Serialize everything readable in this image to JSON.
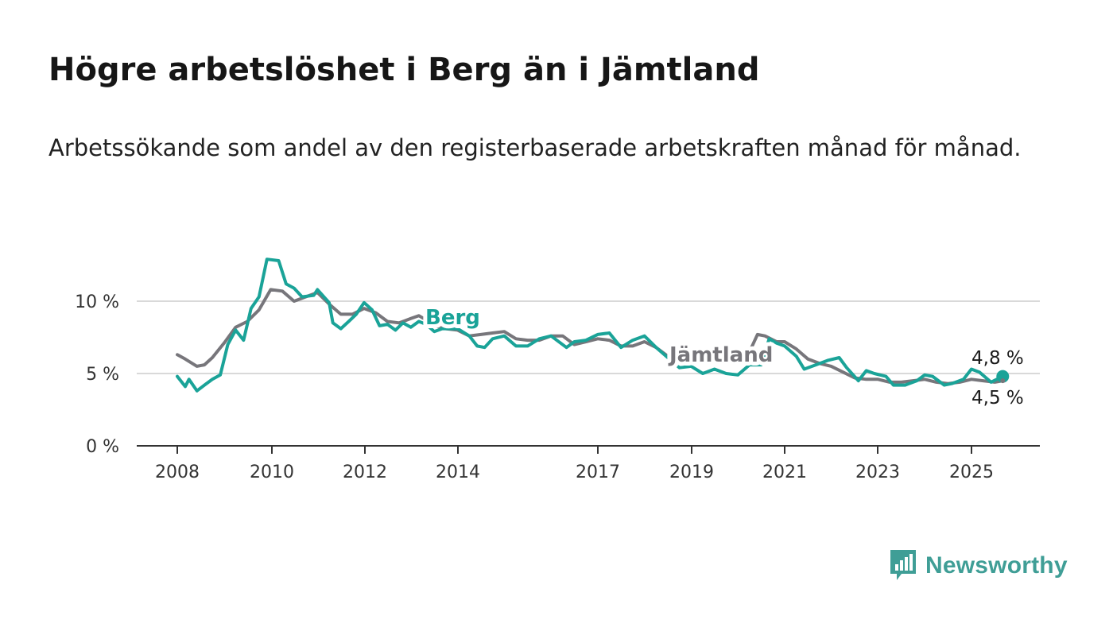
{
  "title": "Högre arbetslöshet i Berg än i Jämtland",
  "subtitle": "Arbetssökande som andel av den registerbaserade arbetskraften månad för månad.",
  "brand": {
    "name": "Newsworthy",
    "icon": "newsworthy-chart-bubble-icon",
    "color": "#3f9e96"
  },
  "colors": {
    "berg": "#1aa398",
    "jamtland": "#77767b",
    "grid": "#d9d9d9",
    "axis": "#333333"
  },
  "chart_data": {
    "type": "line",
    "title": "Högre arbetslöshet i Berg än i Jämtland",
    "xlabel": "",
    "ylabel": "",
    "x_ticks": [
      "2008",
      "2010",
      "2012",
      "2014",
      "2017",
      "2019",
      "2021",
      "2023",
      "2025"
    ],
    "y_ticks": [
      "0 %",
      "5 %",
      "10 %"
    ],
    "ylim": [
      0,
      10
    ],
    "grid": true,
    "end_labels": {
      "berg": "4,8 %",
      "jamtland": "4,5 %"
    },
    "series": [
      {
        "name": "Berg",
        "key": "berg",
        "color": "#1aa398",
        "points": [
          [
            2008.0,
            4.8
          ],
          [
            2008.17,
            4.1
          ],
          [
            2008.25,
            4.6
          ],
          [
            2008.42,
            3.8
          ],
          [
            2008.58,
            4.2
          ],
          [
            2008.75,
            4.6
          ],
          [
            2008.92,
            4.9
          ],
          [
            2009.08,
            7.0
          ],
          [
            2009.25,
            8.0
          ],
          [
            2009.42,
            7.3
          ],
          [
            2009.58,
            9.5
          ],
          [
            2009.75,
            10.3
          ],
          [
            2009.92,
            12.9
          ],
          [
            2010.17,
            12.8
          ],
          [
            2010.33,
            11.2
          ],
          [
            2010.5,
            10.9
          ],
          [
            2010.67,
            10.3
          ],
          [
            2010.92,
            10.4
          ],
          [
            2011.0,
            10.8
          ],
          [
            2011.25,
            9.9
          ],
          [
            2011.33,
            8.5
          ],
          [
            2011.5,
            8.1
          ],
          [
            2011.67,
            8.6
          ],
          [
            2011.83,
            9.1
          ],
          [
            2012.0,
            9.9
          ],
          [
            2012.17,
            9.4
          ],
          [
            2012.33,
            8.3
          ],
          [
            2012.5,
            8.4
          ],
          [
            2012.67,
            8.0
          ],
          [
            2012.83,
            8.5
          ],
          [
            2013.0,
            8.2
          ],
          [
            2013.17,
            8.6
          ],
          [
            2013.33,
            8.4
          ],
          [
            2013.5,
            7.9
          ],
          [
            2013.67,
            8.1
          ],
          [
            2014.0,
            8.1
          ],
          [
            2014.25,
            7.6
          ],
          [
            2014.42,
            6.9
          ],
          [
            2014.58,
            6.8
          ],
          [
            2014.75,
            7.4
          ],
          [
            2015.0,
            7.6
          ],
          [
            2015.25,
            6.9
          ],
          [
            2015.5,
            6.9
          ],
          [
            2015.75,
            7.4
          ],
          [
            2016.0,
            7.6
          ],
          [
            2016.33,
            6.8
          ],
          [
            2016.5,
            7.2
          ],
          [
            2016.75,
            7.3
          ],
          [
            2017.0,
            7.7
          ],
          [
            2017.25,
            7.8
          ],
          [
            2017.5,
            6.8
          ],
          [
            2017.75,
            7.3
          ],
          [
            2018.0,
            7.6
          ],
          [
            2018.25,
            6.8
          ],
          [
            2018.5,
            6.1
          ],
          [
            2018.75,
            5.4
          ],
          [
            2019.0,
            5.5
          ],
          [
            2019.25,
            5.0
          ],
          [
            2019.5,
            5.3
          ],
          [
            2019.75,
            5.0
          ],
          [
            2020.0,
            4.9
          ],
          [
            2020.25,
            5.6
          ],
          [
            2020.5,
            5.6
          ],
          [
            2020.67,
            7.4
          ],
          [
            2020.83,
            7.1
          ],
          [
            2021.0,
            6.9
          ],
          [
            2021.25,
            6.2
          ],
          [
            2021.42,
            5.3
          ],
          [
            2021.67,
            5.6
          ],
          [
            2021.92,
            5.9
          ],
          [
            2022.17,
            6.1
          ],
          [
            2022.33,
            5.4
          ],
          [
            2022.58,
            4.5
          ],
          [
            2022.75,
            5.2
          ],
          [
            2022.92,
            5.0
          ],
          [
            2023.17,
            4.8
          ],
          [
            2023.33,
            4.2
          ],
          [
            2023.58,
            4.2
          ],
          [
            2023.83,
            4.5
          ],
          [
            2024.0,
            4.9
          ],
          [
            2024.17,
            4.8
          ],
          [
            2024.42,
            4.2
          ],
          [
            2024.58,
            4.3
          ],
          [
            2024.83,
            4.6
          ],
          [
            2025.0,
            5.3
          ],
          [
            2025.17,
            5.1
          ],
          [
            2025.42,
            4.4
          ],
          [
            2025.67,
            4.8
          ]
        ]
      },
      {
        "name": "Jämtland",
        "key": "jamtland",
        "color": "#77767b",
        "points": [
          [
            2008.0,
            6.3
          ],
          [
            2008.17,
            6.0
          ],
          [
            2008.42,
            5.5
          ],
          [
            2008.58,
            5.6
          ],
          [
            2008.75,
            6.1
          ],
          [
            2009.0,
            7.1
          ],
          [
            2009.25,
            8.2
          ],
          [
            2009.5,
            8.6
          ],
          [
            2009.75,
            9.4
          ],
          [
            2010.0,
            10.8
          ],
          [
            2010.25,
            10.7
          ],
          [
            2010.5,
            10.0
          ],
          [
            2010.75,
            10.3
          ],
          [
            2011.0,
            10.6
          ],
          [
            2011.25,
            9.8
          ],
          [
            2011.5,
            9.1
          ],
          [
            2011.75,
            9.1
          ],
          [
            2012.0,
            9.5
          ],
          [
            2012.25,
            9.2
          ],
          [
            2012.5,
            8.6
          ],
          [
            2012.75,
            8.5
          ],
          [
            2013.0,
            8.8
          ],
          [
            2013.17,
            9.0
          ],
          [
            2013.33,
            8.7
          ],
          [
            2013.5,
            8.3
          ],
          [
            2013.75,
            8.1
          ],
          [
            2014.0,
            8.0
          ],
          [
            2014.25,
            7.6
          ],
          [
            2014.5,
            7.7
          ],
          [
            2014.75,
            7.8
          ],
          [
            2015.0,
            7.9
          ],
          [
            2015.25,
            7.4
          ],
          [
            2015.5,
            7.3
          ],
          [
            2015.75,
            7.3
          ],
          [
            2016.0,
            7.6
          ],
          [
            2016.25,
            7.6
          ],
          [
            2016.5,
            7.0
          ],
          [
            2016.75,
            7.2
          ],
          [
            2017.0,
            7.4
          ],
          [
            2017.25,
            7.3
          ],
          [
            2017.5,
            6.9
          ],
          [
            2017.75,
            6.9
          ],
          [
            2018.0,
            7.2
          ],
          [
            2018.25,
            6.8
          ],
          [
            2018.5,
            6.2
          ],
          [
            2018.75,
            5.9
          ],
          [
            2019.0,
            5.8
          ],
          [
            2019.25,
            5.8
          ],
          [
            2019.5,
            5.9
          ],
          [
            2019.75,
            6.0
          ],
          [
            2020.0,
            6.1
          ],
          [
            2020.25,
            6.5
          ],
          [
            2020.42,
            7.7
          ],
          [
            2020.58,
            7.6
          ],
          [
            2020.83,
            7.2
          ],
          [
            2021.0,
            7.2
          ],
          [
            2021.25,
            6.7
          ],
          [
            2021.5,
            6.0
          ],
          [
            2021.75,
            5.7
          ],
          [
            2022.0,
            5.5
          ],
          [
            2022.25,
            5.1
          ],
          [
            2022.5,
            4.7
          ],
          [
            2022.75,
            4.6
          ],
          [
            2023.0,
            4.6
          ],
          [
            2023.25,
            4.4
          ],
          [
            2023.5,
            4.4
          ],
          [
            2023.75,
            4.5
          ],
          [
            2024.0,
            4.6
          ],
          [
            2024.25,
            4.4
          ],
          [
            2024.5,
            4.3
          ],
          [
            2024.75,
            4.4
          ],
          [
            2025.0,
            4.6
          ],
          [
            2025.25,
            4.5
          ],
          [
            2025.5,
            4.4
          ],
          [
            2025.67,
            4.5
          ]
        ]
      }
    ]
  }
}
